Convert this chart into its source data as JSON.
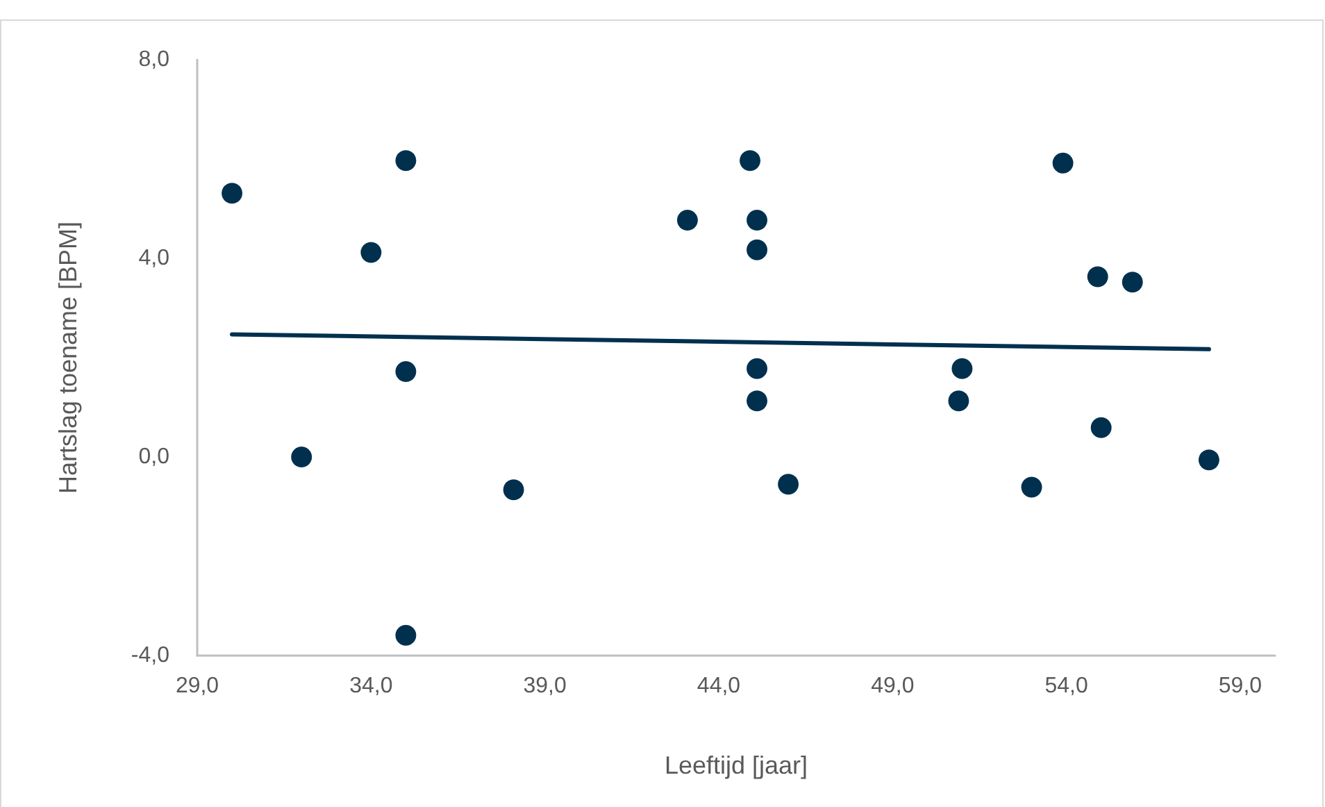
{
  "chart_data": {
    "type": "scatter",
    "xlabel": "Leeftijd [jaar]",
    "ylabel": "Hartslag toename [BPM]",
    "xlim": [
      29,
      60
    ],
    "xticks": [
      {
        "value": 29,
        "label": "29,0"
      },
      {
        "value": 34,
        "label": "34,0"
      },
      {
        "value": 39,
        "label": "39,0"
      },
      {
        "value": 44,
        "label": "44,0"
      },
      {
        "value": 49,
        "label": "49,0"
      },
      {
        "value": 54,
        "label": "54,0"
      },
      {
        "value": 59,
        "label": "59,0"
      }
    ],
    "ylim": [
      -4,
      8
    ],
    "yticks": [
      {
        "value": -4,
        "label": "-4,0"
      },
      {
        "value": 0,
        "label": "0,0"
      },
      {
        "value": 4,
        "label": "4,0"
      },
      {
        "value": 8,
        "label": "8,0"
      }
    ],
    "marker": "circle",
    "series": [
      {
        "color": "#00304e",
        "x": [
          30.0,
          32.0,
          34.0,
          35.0,
          35.0,
          35.0,
          38.1,
          43.1,
          44.9,
          45.1,
          45.1,
          45.1,
          45.1,
          46.0,
          50.9,
          51.0,
          53.0,
          53.9,
          54.9,
          55.0,
          55.9,
          58.1
        ],
        "values": [
          5.31,
          0.0,
          4.12,
          5.97,
          1.72,
          -3.59,
          -0.66,
          4.77,
          5.97,
          4.77,
          4.17,
          1.78,
          1.13,
          -0.55,
          1.13,
          1.78,
          -0.61,
          5.92,
          3.63,
          0.59,
          3.52,
          -0.06
        ]
      },
      {
        "type": "line",
        "color": "#00304e",
        "marker": "none",
        "x": [
          30.0,
          58.1
        ],
        "values": [
          2.47,
          2.17
        ]
      }
    ]
  }
}
